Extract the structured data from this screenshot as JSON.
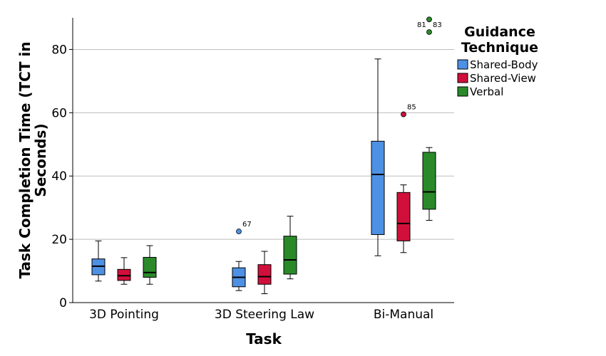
{
  "chart_data": {
    "type": "boxplot",
    "xlabel": "Task",
    "ylabel_lines": [
      "Task Completion Time (TCT in",
      "Seconds)"
    ],
    "ylim": [
      0,
      90
    ],
    "yticks": [
      0,
      20,
      40,
      60,
      80
    ],
    "grid": true,
    "categories": [
      "3D Pointing",
      "3D Steering Law",
      "Bi-Manual"
    ],
    "legend": {
      "title_lines": [
        "Guidance",
        "Technique"
      ],
      "placement": "right"
    },
    "colors": {
      "Shared-Body": "#4e90e3",
      "Shared-View": "#d0103a",
      "Verbal": "#2a8a2a"
    },
    "series": [
      {
        "name": "Shared-Body",
        "boxes": [
          {
            "min": 6.8,
            "q1": 8.8,
            "median": 11.5,
            "q3": 13.8,
            "max": 19.5,
            "outliers": []
          },
          {
            "min": 3.8,
            "q1": 5.0,
            "median": 8.0,
            "q3": 11.0,
            "max": 13.0,
            "outliers": [
              {
                "value": 22.5,
                "label": "67"
              }
            ]
          },
          {
            "min": 14.8,
            "q1": 21.5,
            "median": 40.5,
            "q3": 51.0,
            "max": 77.0,
            "outliers": []
          }
        ]
      },
      {
        "name": "Shared-View",
        "boxes": [
          {
            "min": 5.8,
            "q1": 7.0,
            "median": 8.5,
            "q3": 10.5,
            "max": 14.2,
            "outliers": []
          },
          {
            "min": 2.8,
            "q1": 5.8,
            "median": 8.2,
            "q3": 12.0,
            "max": 16.2,
            "outliers": []
          },
          {
            "min": 15.8,
            "q1": 19.5,
            "median": 25.0,
            "q3": 34.8,
            "max": 37.2,
            "outliers": [
              {
                "value": 59.5,
                "label": "85"
              }
            ]
          }
        ]
      },
      {
        "name": "Verbal",
        "boxes": [
          {
            "min": 5.8,
            "q1": 8.0,
            "median": 9.5,
            "q3": 14.3,
            "max": 18.0,
            "outliers": []
          },
          {
            "min": 7.5,
            "q1": 9.0,
            "median": 13.5,
            "q3": 21.0,
            "max": 27.3,
            "outliers": []
          },
          {
            "min": 26.0,
            "q1": 29.5,
            "median": 35.0,
            "q3": 47.5,
            "max": 49.0,
            "outliers": [
              {
                "value": 85.5,
                "label": "81"
              },
              {
                "value": 89.5,
                "label": "83"
              }
            ]
          }
        ]
      }
    ]
  }
}
